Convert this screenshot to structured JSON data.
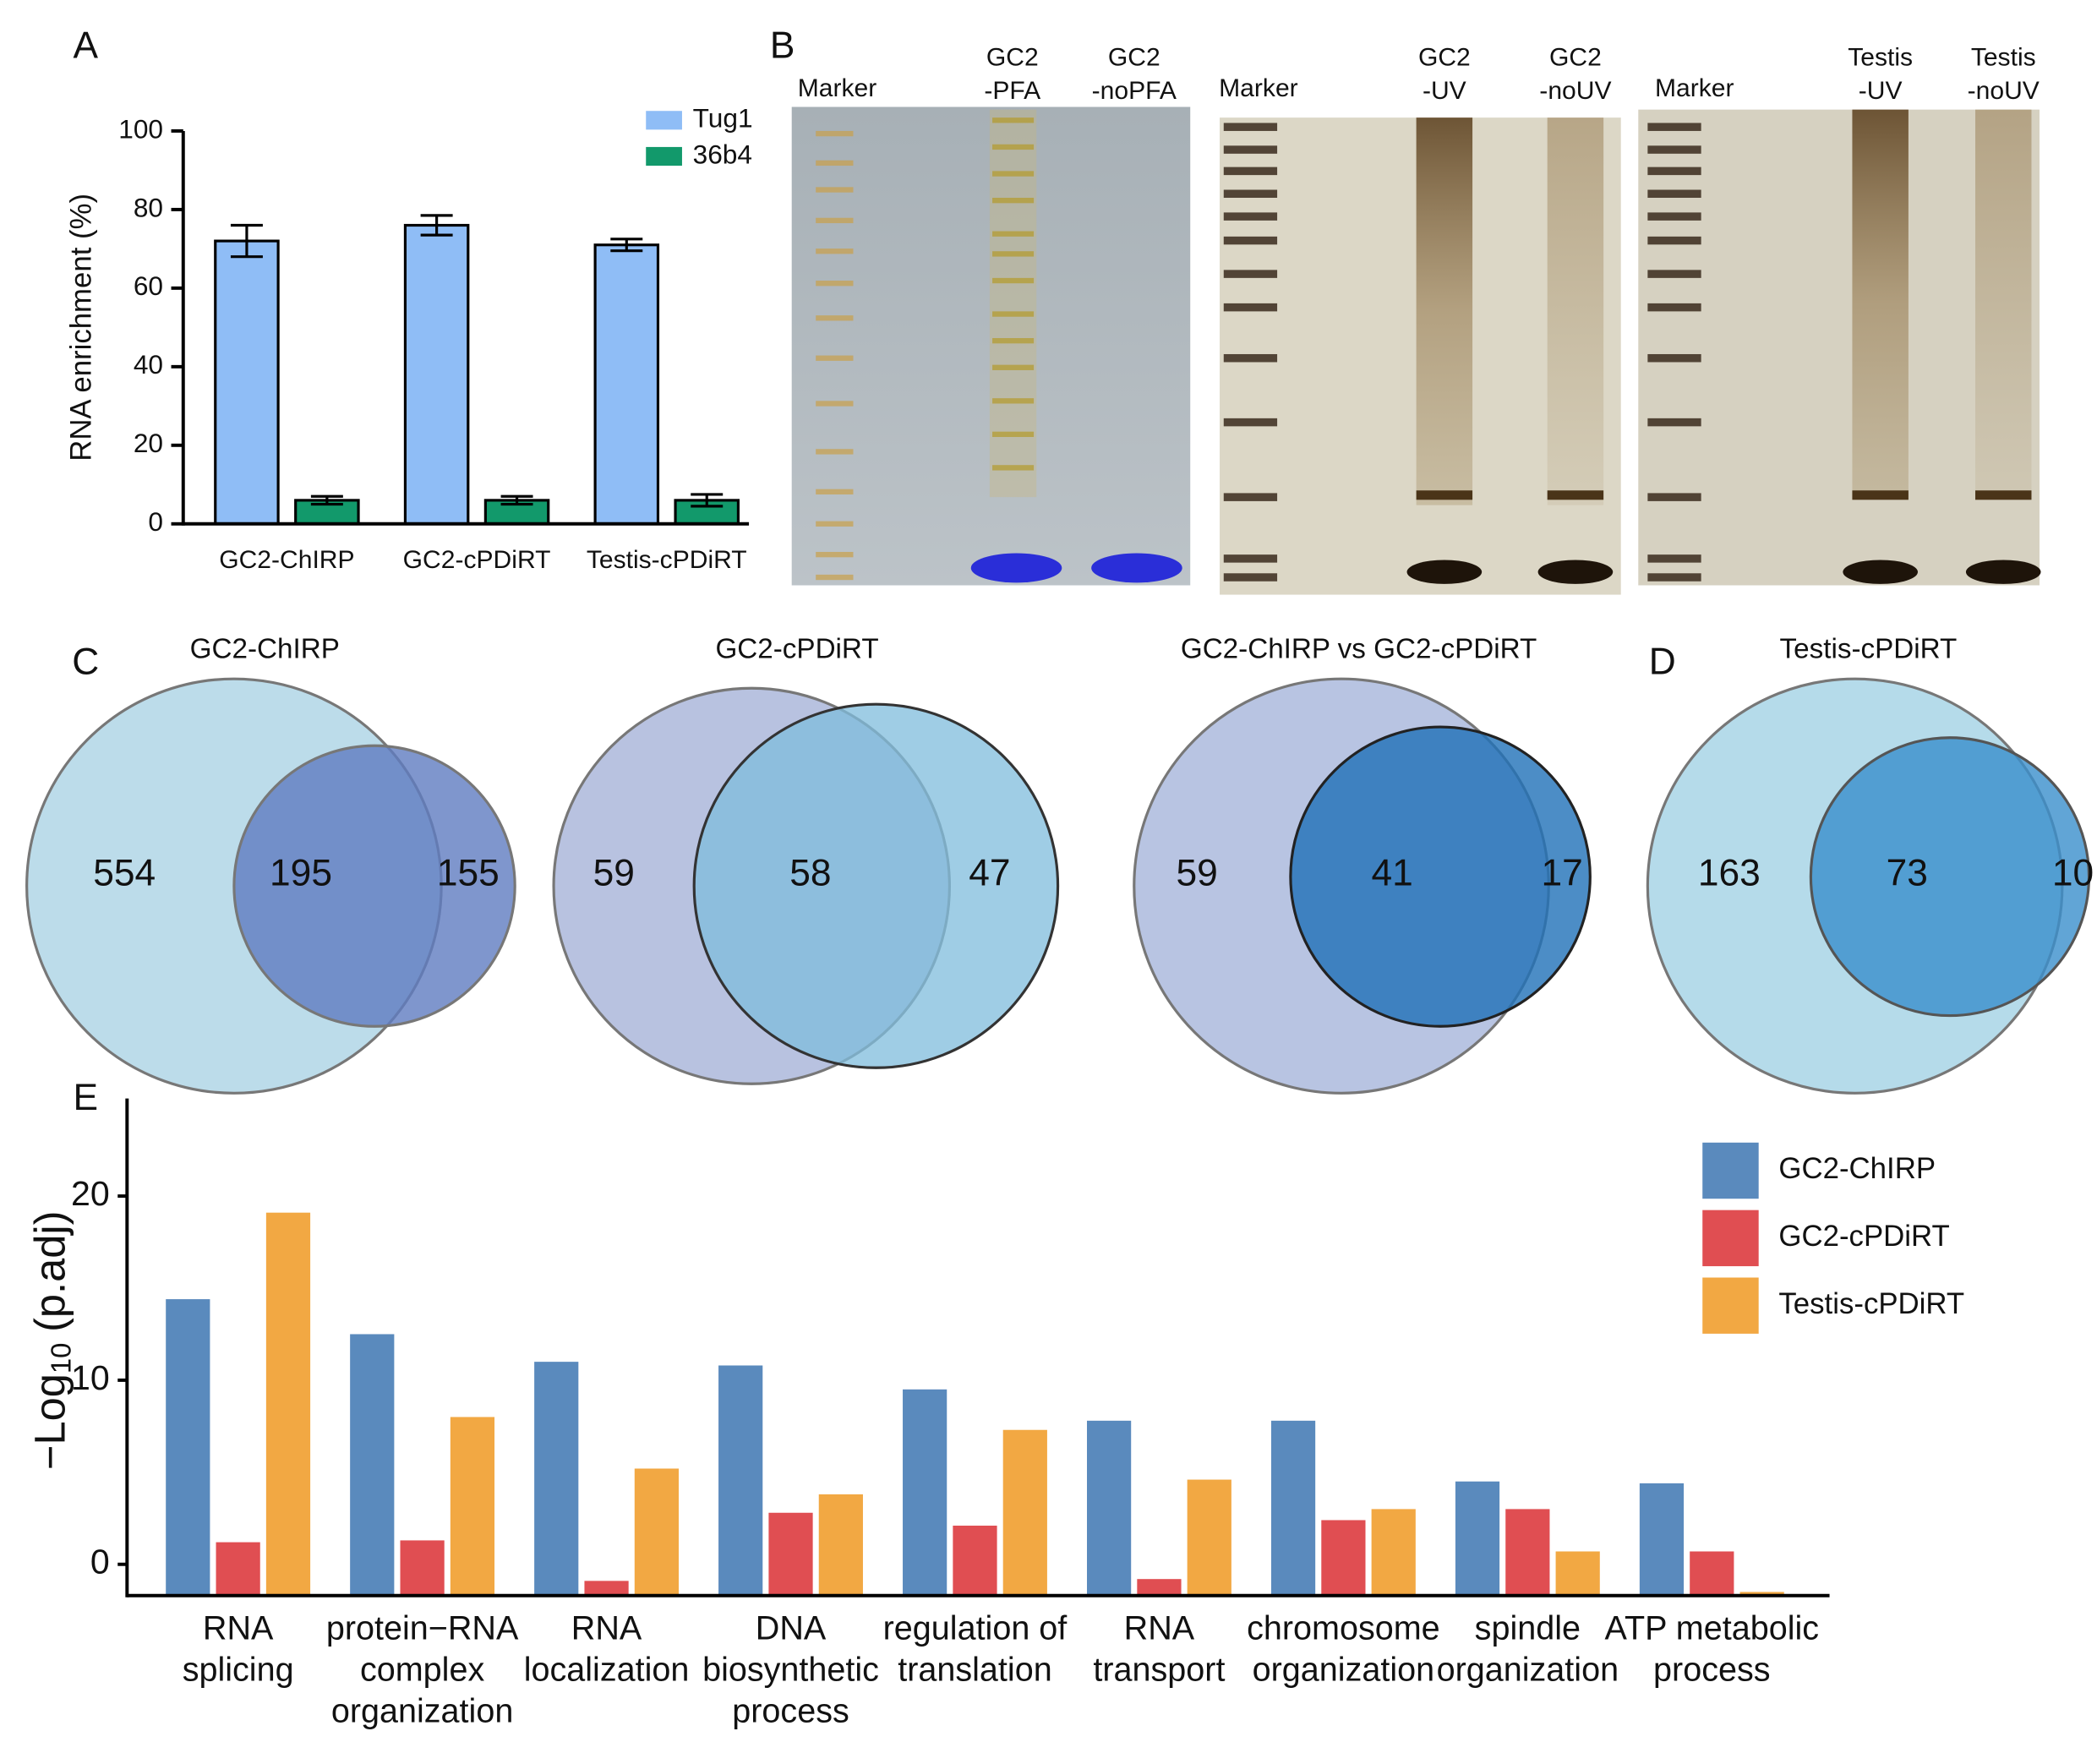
{
  "chart_data": [
    {
      "panel": "A",
      "type": "bar",
      "y_label": "RNA enrichment (%)",
      "categories": [
        "GC2-ChIRP",
        "GC2-cPDiRT",
        "Testis-cPDiRT"
      ],
      "series": [
        {
          "name": "Tug1",
          "color": "#8fbdf6",
          "values": [
            72,
            76,
            71
          ],
          "errors": [
            4,
            2.5,
            1.5
          ]
        },
        {
          "name": "36b4",
          "color": "#12996b",
          "values": [
            6,
            6,
            6
          ],
          "errors": [
            1,
            1,
            1.5
          ]
        }
      ],
      "ylim": [
        0,
        100
      ],
      "yticks": [
        0,
        20,
        40,
        60,
        80,
        100
      ],
      "legend": "upper right"
    },
    {
      "panel": "C",
      "type": "venn",
      "title": "GC2-ChIRP",
      "values": [
        554,
        195,
        155
      ],
      "colors": [
        "#bcdcea",
        "#5f7cc0"
      ]
    },
    {
      "type": "venn",
      "title": "GC2-cPDiRT",
      "values": [
        59,
        58,
        47
      ],
      "colors": [
        "#b8c2e0",
        "#7fbcdc"
      ]
    },
    {
      "type": "venn",
      "title": "GC2-ChIRP vs GC2-cPDiRT",
      "values": [
        59,
        41,
        17
      ],
      "colors": [
        "#b8c4e2",
        "#1f70b8"
      ]
    },
    {
      "panel": "D",
      "type": "venn",
      "title": "Testis-cPDiRT",
      "values": [
        163,
        73,
        10
      ],
      "colors": [
        "#b5dbea",
        "#3a8fcc"
      ]
    },
    {
      "panel": "E",
      "type": "bar",
      "y_label": [
        "−Log",
        "10",
        "(p.adj)"
      ],
      "categories": [
        [
          "RNA",
          "splicing"
        ],
        [
          "protein−RNA",
          "complex",
          "organization"
        ],
        [
          "RNA",
          "localization"
        ],
        [
          "DNA",
          "biosynthetic",
          "process"
        ],
        [
          "regulation of",
          "translation"
        ],
        [
          "RNA",
          "transport"
        ],
        [
          "chromosome",
          "organization"
        ],
        [
          "spindle",
          "organization"
        ],
        [
          "ATP metabolic",
          "process"
        ]
      ],
      "series": [
        {
          "name": "GC2-ChIRP",
          "color": "#5a8abd",
          "values": [
            14.4,
            12.5,
            11.0,
            10.8,
            9.5,
            7.8,
            7.8,
            4.5,
            4.4
          ]
        },
        {
          "name": "GC2-cPDiRT",
          "color": "#e04e52",
          "values": [
            1.2,
            1.3,
            -0.9,
            2.8,
            2.1,
            -0.8,
            2.4,
            3.0,
            0.7
          ]
        },
        {
          "name": "Testis-cPDiRT",
          "color": "#f2a843",
          "values": [
            19.1,
            8.0,
            5.2,
            3.8,
            7.3,
            4.6,
            3.0,
            0.7,
            -1.5
          ]
        }
      ],
      "ylim": [
        -1.7,
        25.3
      ],
      "yticks": [
        0,
        10,
        20
      ],
      "legend": "upper right"
    }
  ],
  "gels": {
    "panel": "B",
    "labels": [
      [
        [
          "Marker"
        ],
        [
          "GC2",
          "-PFA"
        ],
        [
          "GC2",
          "-noPFA"
        ]
      ],
      [
        [
          "Marker"
        ],
        [
          "GC2",
          "-UV"
        ],
        [
          "GC2",
          "-noUV"
        ]
      ],
      [
        [
          "Marker"
        ],
        [
          "Testis",
          "-UV"
        ],
        [
          "Testis",
          "-noUV"
        ]
      ]
    ]
  }
}
